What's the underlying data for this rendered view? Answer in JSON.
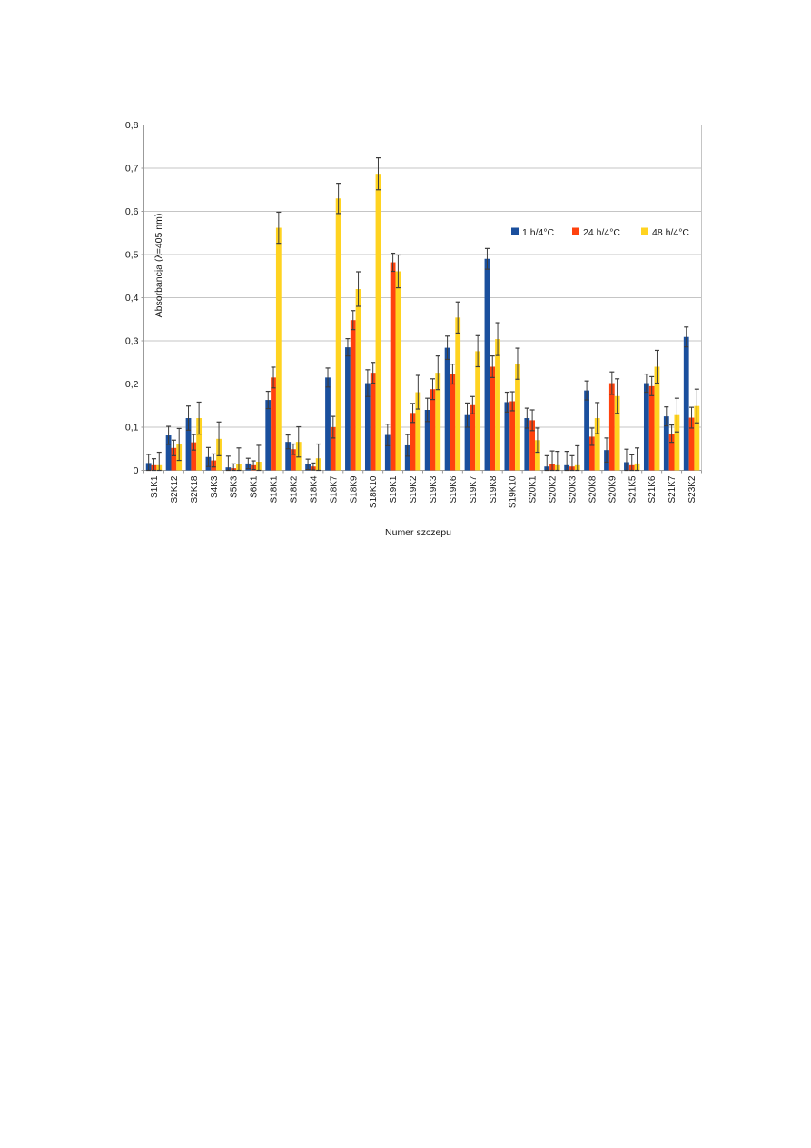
{
  "page": {
    "background": "#ffffff"
  },
  "chart_data": {
    "type": "bar",
    "title": "",
    "xlabel": "Numer szczepu",
    "ylabel": "Absorbancja (λ=405 nm)",
    "ylim": [
      0,
      0.8
    ],
    "ytick_step": 0.1,
    "ytick_labels": [
      "0",
      "0,1",
      "0,2",
      "0,3",
      "0,4",
      "0,5",
      "0,6",
      "0,7",
      "0,8"
    ],
    "grid": true,
    "legend_position": "inside-top-right",
    "error_bars": true,
    "categories": [
      "S1K1",
      "S2K12",
      "S2K18",
      "S4K3",
      "S5K3",
      "S6K1",
      "S18K1",
      "S18K2",
      "S18K4",
      "S18K7",
      "S18K9",
      "S18K10",
      "S19K1",
      "S19K2",
      "S19K3",
      "S19K6",
      "S19K7",
      "S19K8",
      "S19K10",
      "S20K1",
      "S20K2",
      "S20K3",
      "S20K8",
      "S20K9",
      "S21K5",
      "S21K6",
      "S21K7",
      "S23K2"
    ],
    "series": [
      {
        "name": "1 h/4°C",
        "color": "#1A4F9D",
        "values": [
          0.017,
          0.081,
          0.121,
          0.031,
          0.007,
          0.016,
          0.163,
          0.066,
          0.014,
          0.215,
          0.285,
          0.202,
          0.082,
          0.058,
          0.14,
          0.284,
          0.128,
          0.49,
          0.158,
          0.121,
          0.009,
          0.012,
          0.185,
          0.047,
          0.019,
          0.202,
          0.125,
          0.309
        ],
        "errors": [
          0.02,
          0.021,
          0.028,
          0.022,
          0.026,
          0.012,
          0.02,
          0.016,
          0.012,
          0.022,
          0.02,
          0.031,
          0.025,
          0.025,
          0.027,
          0.027,
          0.028,
          0.024,
          0.023,
          0.023,
          0.025,
          0.032,
          0.022,
          0.028,
          0.03,
          0.021,
          0.022,
          0.023
        ]
      },
      {
        "name": "24 h/4°C",
        "color": "#FF420E",
        "values": [
          0.012,
          0.052,
          0.065,
          0.023,
          0.005,
          0.012,
          0.215,
          0.049,
          0.009,
          0.1,
          0.348,
          0.226,
          0.482,
          0.133,
          0.188,
          0.223,
          0.151,
          0.24,
          0.16,
          0.116,
          0.015,
          0.009,
          0.078,
          0.202,
          0.012,
          0.195,
          0.085,
          0.122
        ],
        "errors": [
          0.015,
          0.018,
          0.018,
          0.015,
          0.01,
          0.01,
          0.024,
          0.012,
          0.008,
          0.025,
          0.022,
          0.024,
          0.021,
          0.022,
          0.024,
          0.023,
          0.02,
          0.025,
          0.022,
          0.024,
          0.03,
          0.025,
          0.02,
          0.026,
          0.024,
          0.022,
          0.02,
          0.024
        ]
      },
      {
        "name": "48 h/4°C",
        "color": "#FFD320",
        "values": [
          0.012,
          0.06,
          0.121,
          0.073,
          0.014,
          0.02,
          0.562,
          0.066,
          0.028,
          0.63,
          0.42,
          0.687,
          0.461,
          0.181,
          0.226,
          0.354,
          0.276,
          0.304,
          0.247,
          0.07,
          0.012,
          0.012,
          0.121,
          0.172,
          0.016,
          0.24,
          0.128,
          0.149
        ],
        "errors": [
          0.03,
          0.037,
          0.037,
          0.039,
          0.038,
          0.038,
          0.036,
          0.035,
          0.033,
          0.035,
          0.04,
          0.037,
          0.038,
          0.039,
          0.039,
          0.036,
          0.036,
          0.038,
          0.036,
          0.028,
          0.032,
          0.045,
          0.036,
          0.04,
          0.036,
          0.038,
          0.039,
          0.039
        ]
      }
    ],
    "colors": {
      "gridline": "#C5C5C5",
      "axis": "#9B9B9B",
      "error_bar": "#3C3C3C",
      "text": "#1A1A1A"
    }
  }
}
